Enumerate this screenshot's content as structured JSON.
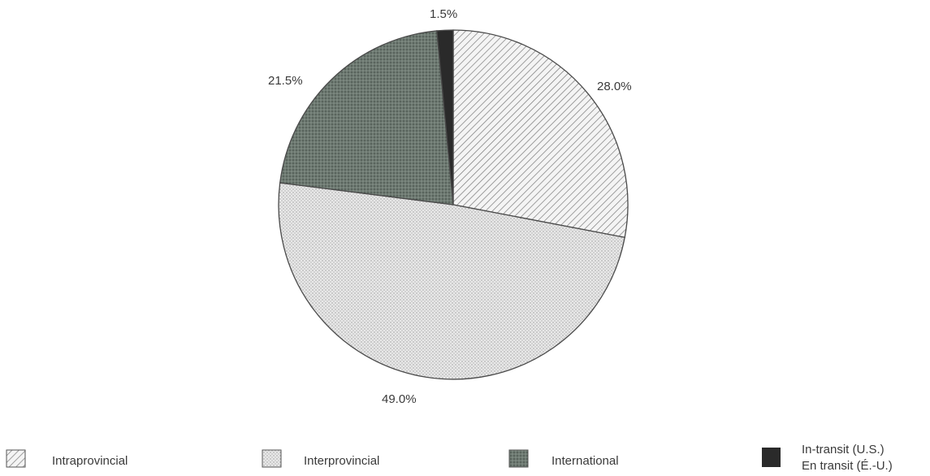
{
  "chart_data": {
    "type": "pie",
    "title": "",
    "slices": [
      {
        "label": "Intraprovincial",
        "value": 28.0,
        "value_label": "28.0%",
        "fill": "hatch"
      },
      {
        "label": "Interprovincial",
        "value": 49.0,
        "value_label": "49.0%",
        "fill": "light-dots"
      },
      {
        "label": "International",
        "value": 21.5,
        "value_label": "21.5%",
        "fill": "dark-dots"
      },
      {
        "label": "In-transit (U.S.)",
        "label_2": "En transit (É.-U.)",
        "value": 1.5,
        "value_label": "1.5%",
        "fill": "solid"
      }
    ],
    "start_angle_deg": 0,
    "direction": "clockwise",
    "legend_position": "bottom",
    "colors": {
      "Intraprovincial": "#f2f2f2",
      "Interprovincial": "#e4e4e4",
      "International": "#6f7a72",
      "In-transit (U.S.)": "#2a2a2a"
    }
  },
  "legend": [
    {
      "label": "Intraprovincial",
      "icon": "hatch-swatch-icon"
    },
    {
      "label": "Interprovincial",
      "icon": "light-dot-swatch-icon"
    },
    {
      "label": "International",
      "icon": "dark-dot-swatch-icon"
    },
    {
      "label": "In-transit (U.S.)",
      "label_2": "En transit (É.-U.)",
      "icon": "solid-swatch-icon"
    }
  ]
}
